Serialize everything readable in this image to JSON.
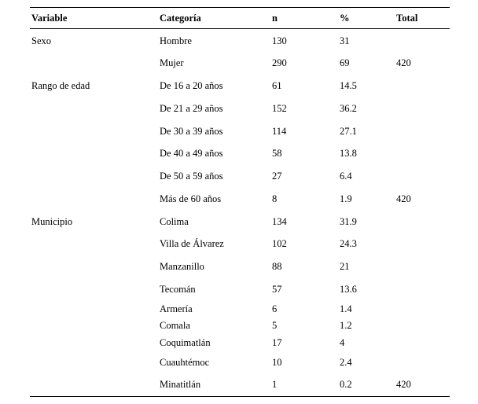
{
  "table": {
    "headers": {
      "variable": "Variable",
      "categoria": "Categoría",
      "n": "n",
      "pct": "%",
      "total": "Total"
    },
    "rows": [
      {
        "variable": "Sexo",
        "categoria": "Hombre",
        "n": "130",
        "pct": "31",
        "total": "",
        "tight": false
      },
      {
        "variable": "",
        "categoria": "Mujer",
        "n": "290",
        "pct": "69",
        "total": "420",
        "tight": false
      },
      {
        "variable": "Rango de edad",
        "categoria": "De 16 a 20 años",
        "n": "61",
        "pct": "14.5",
        "total": "",
        "tight": false
      },
      {
        "variable": "",
        "categoria": "De 21 a 29 años",
        "n": "152",
        "pct": "36.2",
        "total": "",
        "tight": false
      },
      {
        "variable": "",
        "categoria": "De 30 a 39 años",
        "n": "114",
        "pct": "27.1",
        "total": "",
        "tight": false
      },
      {
        "variable": "",
        "categoria": "De 40 a 49 años",
        "n": "58",
        "pct": "13.8",
        "total": "",
        "tight": false
      },
      {
        "variable": "",
        "categoria": "De 50 a 59 años",
        "n": "27",
        "pct": "6.4",
        "total": "",
        "tight": false
      },
      {
        "variable": "",
        "categoria": "Más de 60 años",
        "n": "8",
        "pct": "1.9",
        "total": "420",
        "tight": false
      },
      {
        "variable": "Municipio",
        "categoria": "Colima",
        "n": "134",
        "pct": "31.9",
        "total": "",
        "tight": false
      },
      {
        "variable": "",
        "categoria": "Villa de Álvarez",
        "n": "102",
        "pct": "24.3",
        "total": "",
        "tight": false
      },
      {
        "variable": "",
        "categoria": "Manzanillo",
        "n": "88",
        "pct": "21",
        "total": "",
        "tight": false
      },
      {
        "variable": "",
        "categoria": "Tecomán",
        "n": "57",
        "pct": "13.6",
        "total": "",
        "tight": false
      },
      {
        "variable": "",
        "categoria": "Armería",
        "n": "6",
        "pct": "1.4",
        "total": "",
        "tight": true
      },
      {
        "variable": "",
        "categoria": "Comala",
        "n": "5",
        "pct": "1.2",
        "total": "",
        "tight": true
      },
      {
        "variable": "",
        "categoria": "Coquimatlán",
        "n": "17",
        "pct": "4",
        "total": "",
        "tight": true
      },
      {
        "variable": "",
        "categoria": "Cuauhtémoc",
        "n": "10",
        "pct": "2.4",
        "total": "",
        "tight": false
      },
      {
        "variable": "",
        "categoria": "Minatitlán",
        "n": "1",
        "pct": "0.2",
        "total": "420",
        "tight": false
      }
    ]
  },
  "chart_data": {
    "type": "table",
    "title": "",
    "columns": [
      "Variable",
      "Categoría",
      "n",
      "%",
      "Total"
    ],
    "groups": [
      {
        "variable": "Sexo",
        "total": 420,
        "categories": [
          "Hombre",
          "Mujer"
        ],
        "n": [
          130,
          290
        ],
        "pct": [
          31,
          69
        ]
      },
      {
        "variable": "Rango de edad",
        "total": 420,
        "categories": [
          "De 16 a 20 años",
          "De 21 a 29 años",
          "De 30 a 39 años",
          "De 40 a 49 años",
          "De 50 a 59 años",
          "Más de 60 años"
        ],
        "n": [
          61,
          152,
          114,
          58,
          27,
          8
        ],
        "pct": [
          14.5,
          36.2,
          27.1,
          13.8,
          6.4,
          1.9
        ]
      },
      {
        "variable": "Municipio",
        "total": 420,
        "categories": [
          "Colima",
          "Villa de Álvarez",
          "Manzanillo",
          "Tecomán",
          "Armería",
          "Comala",
          "Coquimatlán",
          "Cuauhtémoc",
          "Minatitlán"
        ],
        "n": [
          134,
          102,
          88,
          57,
          6,
          5,
          17,
          10,
          1
        ],
        "pct": [
          31.9,
          24.3,
          21,
          13.6,
          1.4,
          1.2,
          4,
          2.4,
          0.2
        ]
      }
    ]
  }
}
